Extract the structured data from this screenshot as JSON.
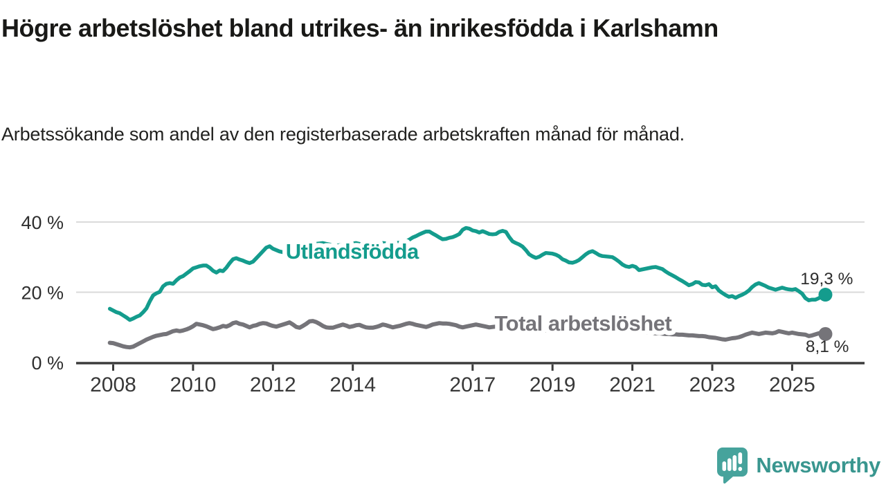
{
  "header": {
    "title": "Högre arbetslöshet bland utrikes- än inrikesfödda i Karlshamn",
    "subtitle": "Arbetssökande som andel av den registerbaserade arbetskraften månad för månad."
  },
  "chart_data": {
    "type": "line",
    "unit": "%",
    "x": {
      "start": "2007-12",
      "end": "2025-11",
      "step": "1 month",
      "tick_years": [
        2008,
        2010,
        2012,
        2014,
        2017,
        2019,
        2021,
        2023,
        2025
      ],
      "tick_labels": [
        "2008",
        "2010",
        "2012",
        "2014",
        "2017",
        "2019",
        "2021",
        "2023",
        "2025"
      ]
    },
    "y": {
      "ticks": [
        0,
        20,
        40
      ],
      "tick_labels": [
        "0 %",
        "20 %",
        "40 %"
      ],
      "range": [
        0,
        42
      ],
      "gridlines": true
    },
    "colors": {
      "grid": "#dadada",
      "axis": "#3b3b3b",
      "tick_text": "#383838",
      "end_label_text": "#2d2d2d"
    },
    "series": [
      {
        "name": "Utlandsfödda",
        "color": "#149c8d",
        "line_width": 5.5,
        "label_anchor": {
          "year": 2012.32,
          "value": 29.6
        },
        "end_label": "19,3 %",
        "end_value": 19.3,
        "end_label_position": "above",
        "values": [
          15.3,
          14.8,
          14.3,
          14.0,
          13.4,
          12.8,
          12.1,
          12.5,
          13.0,
          13.4,
          14.3,
          15.4,
          17.4,
          19.1,
          19.7,
          20.1,
          21.7,
          22.4,
          22.6,
          22.4,
          23.4,
          24.2,
          24.6,
          25.3,
          26.0,
          26.8,
          27.1,
          27.4,
          27.6,
          27.6,
          27.0,
          26.1,
          25.6,
          26.2,
          26.0,
          27.0,
          28.3,
          29.4,
          29.7,
          29.3,
          29.0,
          28.6,
          28.3,
          28.7,
          29.7,
          30.7,
          31.7,
          32.7,
          33.1,
          32.4,
          32.0,
          31.6,
          31.4,
          31.6,
          31.9,
          32.2,
          32.5,
          32.8,
          33.0,
          33.2,
          33.4,
          33.6,
          33.8,
          33.9,
          34.0,
          33.8,
          33.6,
          33.4,
          33.2,
          33.4,
          33.5,
          33.7,
          33.8,
          33.9,
          34.0,
          33.8,
          33.6,
          33.4,
          33.2,
          33.4,
          33.6,
          33.8,
          34.0,
          33.9,
          33.8,
          33.9,
          34.0,
          34.1,
          34.2,
          34.5,
          35.0,
          35.6,
          36.0,
          36.5,
          36.9,
          37.3,
          37.3,
          36.7,
          36.2,
          35.6,
          35.1,
          35.2,
          35.5,
          35.7,
          36.1,
          36.6,
          37.8,
          38.3,
          38.1,
          37.6,
          37.4,
          37.0,
          37.4,
          37.0,
          36.6,
          36.5,
          36.6,
          37.2,
          37.5,
          37.2,
          35.7,
          34.5,
          34.0,
          33.6,
          33.0,
          32.0,
          30.8,
          30.2,
          29.8,
          30.1,
          30.7,
          31.2,
          31.1,
          31.0,
          30.7,
          30.2,
          29.4,
          29.0,
          28.5,
          28.4,
          28.7,
          29.2,
          30.0,
          30.8,
          31.4,
          31.7,
          31.2,
          30.6,
          30.3,
          30.2,
          30.1,
          30.0,
          29.4,
          28.7,
          27.9,
          27.4,
          27.2,
          27.5,
          27.2,
          26.3,
          26.5,
          26.7,
          26.9,
          27.1,
          27.2,
          26.9,
          26.6,
          25.9,
          25.3,
          24.8,
          24.3,
          23.7,
          23.2,
          22.6,
          22.0,
          22.3,
          22.9,
          22.8,
          22.1,
          22.0,
          22.3,
          21.4,
          21.7,
          20.5,
          19.8,
          19.2,
          18.7,
          18.9,
          18.4,
          18.9,
          19.3,
          19.8,
          20.5,
          21.5,
          22.2,
          22.6,
          22.2,
          21.8,
          21.3,
          21.0,
          20.7,
          21.0,
          21.3,
          21.0,
          20.8,
          20.7,
          20.9,
          20.3,
          19.6,
          18.3,
          17.7,
          17.9,
          17.9,
          18.3,
          18.8,
          19.3
        ]
      },
      {
        "name": "Total arbetslöshet",
        "color": "#757479",
        "line_width": 6,
        "label_anchor": {
          "year": 2017.55,
          "value": 9.1
        },
        "end_label": "8,1 %",
        "end_value": 8.1,
        "end_label_position": "below",
        "values": [
          5.6,
          5.5,
          5.2,
          4.9,
          4.6,
          4.4,
          4.3,
          4.5,
          5.0,
          5.5,
          6.0,
          6.5,
          6.9,
          7.3,
          7.6,
          7.8,
          8.0,
          8.1,
          8.5,
          8.9,
          9.1,
          8.9,
          9.1,
          9.4,
          9.8,
          10.3,
          11.0,
          10.8,
          10.6,
          10.3,
          9.9,
          9.5,
          9.7,
          10.0,
          10.4,
          10.2,
          10.6,
          11.2,
          11.4,
          11.0,
          10.8,
          10.4,
          10.0,
          10.4,
          10.6,
          11.0,
          11.2,
          11.1,
          10.7,
          10.4,
          10.2,
          10.5,
          10.8,
          11.1,
          11.4,
          10.8,
          10.1,
          9.9,
          10.4,
          11.0,
          11.7,
          11.8,
          11.5,
          11.0,
          10.4,
          10.0,
          9.9,
          9.9,
          10.2,
          10.5,
          10.8,
          10.5,
          10.1,
          10.3,
          10.6,
          10.7,
          10.3,
          10.0,
          9.9,
          9.9,
          10.1,
          10.4,
          10.8,
          10.6,
          10.3,
          10.0,
          10.2,
          10.4,
          10.7,
          11.0,
          11.2,
          11.0,
          10.7,
          10.5,
          10.3,
          10.1,
          10.4,
          10.8,
          11.0,
          11.2,
          11.1,
          11.1,
          11.0,
          10.8,
          10.6,
          10.2,
          10.0,
          10.2,
          10.4,
          10.6,
          10.8,
          10.6,
          10.4,
          10.2,
          10.0,
          10.1,
          10.2,
          10.1,
          10.0,
          9.8,
          9.7,
          9.6,
          9.5,
          9.3,
          9.2,
          9.1,
          9.0,
          9.0,
          9.1,
          9.1,
          9.2,
          9.1,
          9.1,
          9.0,
          8.9,
          8.9,
          8.8,
          8.7,
          8.6,
          8.6,
          8.7,
          8.7,
          8.8,
          8.9,
          9.0,
          9.2,
          9.4,
          9.6,
          9.8,
          9.8,
          9.7,
          9.6,
          9.5,
          9.3,
          9.2,
          9.1,
          9.0,
          8.8,
          8.7,
          8.7,
          8.6,
          8.5,
          8.5,
          8.4,
          8.3,
          8.3,
          8.2,
          8.1,
          8.1,
          8.0,
          8.0,
          7.9,
          7.9,
          7.8,
          7.7,
          7.7,
          7.6,
          7.5,
          7.5,
          7.4,
          7.2,
          7.1,
          7.0,
          6.8,
          6.6,
          6.5,
          6.7,
          6.9,
          7.0,
          7.2,
          7.5,
          7.9,
          8.2,
          8.5,
          8.3,
          8.1,
          8.3,
          8.5,
          8.4,
          8.3,
          8.5,
          8.9,
          8.7,
          8.5,
          8.3,
          8.5,
          8.3,
          8.1,
          8.0,
          7.9,
          7.5,
          7.7,
          8.0,
          8.3,
          8.4,
          8.1
        ]
      }
    ]
  },
  "footer": {
    "brand": "Newsworthy",
    "logo_bubble_color": "#46a39c",
    "logo_text_color": "#39968f"
  }
}
